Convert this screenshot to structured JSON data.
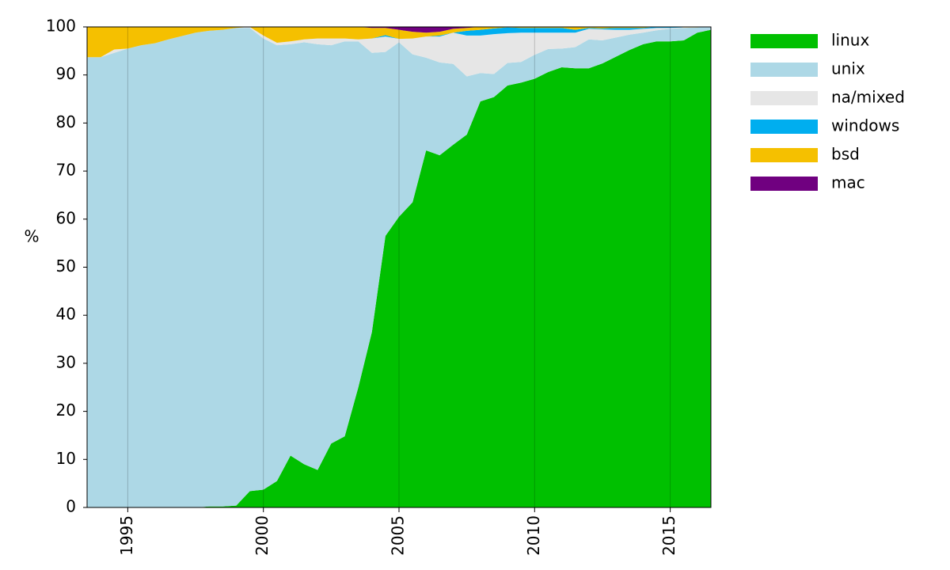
{
  "chart_data": {
    "type": "stacked_area",
    "y_label": "%",
    "x": [
      1993.5,
      1994,
      1994.5,
      1995,
      1995.5,
      1996,
      1996.5,
      1997,
      1997.5,
      1998,
      1998.5,
      1999,
      1999.5,
      2000,
      2000.5,
      2001,
      2001.5,
      2002,
      2002.5,
      2003,
      2003.5,
      2004,
      2004.5,
      2005,
      2005.5,
      2006,
      2006.5,
      2007,
      2007.5,
      2008,
      2008.5,
      2009,
      2009.5,
      2010,
      2010.5,
      2011,
      2011.5,
      2012,
      2012.5,
      2013,
      2013.5,
      2014,
      2014.5,
      2015,
      2015.5,
      2016,
      2016.5
    ],
    "series": [
      {
        "name": "linux",
        "color": "#00c000",
        "values": [
          0,
          0,
          0,
          0,
          0,
          0,
          0,
          0,
          0,
          0.2,
          0.2,
          0.4,
          3.4,
          3.7,
          5.5,
          10.8,
          9,
          7.8,
          13.3,
          14.8,
          25,
          36.5,
          56.5,
          60.5,
          63.5,
          74.3,
          73.3,
          75.5,
          77.6,
          84.5,
          85.4,
          87.8,
          88.4,
          89.2,
          90.6,
          91.6,
          91.4,
          91.4,
          92.4,
          93.8,
          95.2,
          96.4,
          97,
          97,
          97.2,
          98.8,
          99.4
        ]
      },
      {
        "name": "unix",
        "color": "#add8e6",
        "values": [
          93.7,
          93.7,
          94.6,
          95.5,
          96.2,
          96.6,
          97.4,
          98.1,
          98.8,
          99.0,
          99.2,
          99.4,
          96.4,
          93.9,
          90.7,
          85.6,
          87.8,
          88.6,
          82.9,
          82.2,
          72.0,
          58.1,
          38.3,
          36.3,
          30.8,
          19.3,
          19.3,
          16.8,
          12.1,
          5.9,
          4.8,
          4.7,
          4.3,
          5.0,
          4.8,
          3.9,
          4.4,
          6.0,
          4.8,
          4.0,
          3.2,
          2.4,
          2.3,
          2.6,
          2.6,
          1.1,
          0.6
        ]
      },
      {
        "name": "na/mixed",
        "color": "#e6e6e6",
        "values": [
          0,
          0,
          0.7,
          0,
          0,
          0,
          0,
          0,
          0,
          0,
          0,
          0,
          0.2,
          0.6,
          0.5,
          0.6,
          0.6,
          1.2,
          1.4,
          0.6,
          0.4,
          3.0,
          3.2,
          0.7,
          3.3,
          4.4,
          5.4,
          6.5,
          8.5,
          7.8,
          8.3,
          6.2,
          6.1,
          4.6,
          3.4,
          3.3,
          3.0,
          2.2,
          2.3,
          1.6,
          1.0,
          0.8,
          0.5,
          0.2,
          0.1,
          0,
          0
        ]
      },
      {
        "name": "windows",
        "color": "#00aeef",
        "values": [
          0,
          0,
          0,
          0,
          0,
          0,
          0,
          0,
          0,
          0,
          0,
          0,
          0,
          0,
          0,
          0,
          0,
          0,
          0,
          0,
          0,
          0,
          0.3,
          0,
          0,
          0,
          0.2,
          0,
          1.0,
          1.2,
          1.2,
          1.2,
          1.0,
          1.0,
          1.0,
          1.0,
          0.6,
          0.2,
          0.2,
          0.4,
          0.4,
          0.2,
          0.2,
          0.2,
          0,
          0,
          0
        ]
      },
      {
        "name": "bsd",
        "color": "#f5c000",
        "values": [
          6.3,
          6.3,
          4.7,
          4.5,
          3.8,
          3.4,
          2.6,
          1.9,
          1.2,
          0.8,
          0.6,
          0.2,
          0,
          1.8,
          3.3,
          3.0,
          2.6,
          2.4,
          2.4,
          2.4,
          2.6,
          2.2,
          1.5,
          1.9,
          1.4,
          0.8,
          0.8,
          0.8,
          0.6,
          0.6,
          0.3,
          0.1,
          0.2,
          0.2,
          0.2,
          0.2,
          0.6,
          0.2,
          0.3,
          0.2,
          0.2,
          0.2,
          0,
          0,
          0.1,
          0.1,
          0
        ]
      },
      {
        "name": "mac",
        "color": "#700080",
        "values": [
          0,
          0,
          0,
          0,
          0,
          0,
          0,
          0,
          0,
          0,
          0,
          0,
          0,
          0,
          0,
          0,
          0,
          0,
          0,
          0,
          0,
          0.2,
          0.2,
          0.6,
          1.0,
          1.2,
          1.0,
          0.4,
          0.2,
          0,
          0,
          0,
          0,
          0,
          0,
          0,
          0,
          0,
          0,
          0,
          0,
          0,
          0,
          0,
          0,
          0,
          0
        ]
      }
    ],
    "xlim": [
      1993.5,
      2016.5
    ],
    "xticks": [
      1995,
      2000,
      2005,
      2010,
      2015
    ],
    "ylim": [
      0,
      100
    ],
    "yticks": [
      0,
      10,
      20,
      30,
      40,
      50,
      60,
      70,
      80,
      90,
      100
    ],
    "grid": true,
    "legend": "right"
  }
}
